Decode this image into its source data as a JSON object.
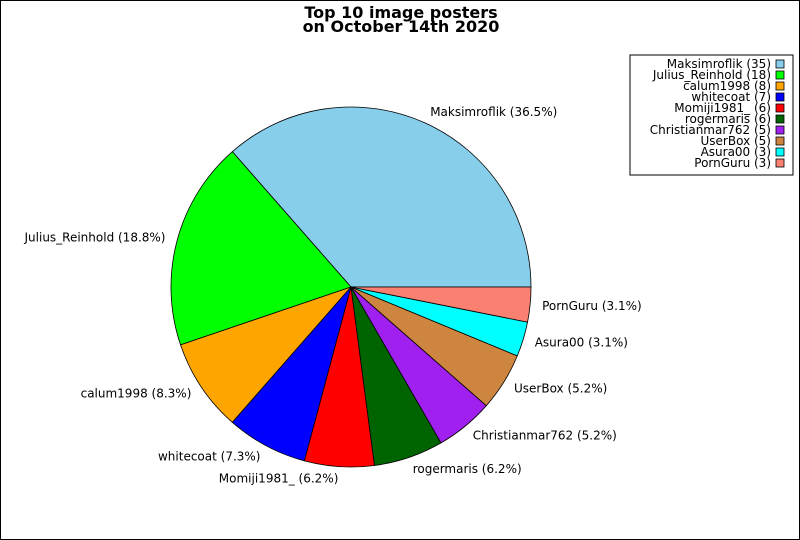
{
  "chart_data": {
    "type": "pie",
    "title_lines": [
      "Top 10 image posters",
      "on October 14th 2020"
    ],
    "slices": [
      {
        "name": "Maksimroflik",
        "value": 35,
        "percent_label": "Maksimroflik (36.5%)",
        "legend_label": "Maksimroflik (35)",
        "color": "#87CEEB"
      },
      {
        "name": "Julius_Reinhold",
        "value": 18,
        "percent_label": "Julius_Reinhold (18.8%)",
        "legend_label": "Julius_Reinhold (18)",
        "color": "#00FF00"
      },
      {
        "name": "calum1998",
        "value": 8,
        "percent_label": "calum1998 (8.3%)",
        "legend_label": "calum1998 (8)",
        "color": "#FFA500"
      },
      {
        "name": "whitecoat",
        "value": 7,
        "percent_label": "whitecoat (7.3%)",
        "legend_label": "whitecoat (7)",
        "color": "#0000FF"
      },
      {
        "name": "Momiji1981_",
        "value": 6,
        "percent_label": "Momiji1981_ (6.2%)",
        "legend_label": "Momiji1981_ (6)",
        "color": "#FF0000"
      },
      {
        "name": "rogermaris",
        "value": 6,
        "percent_label": "rogermaris (6.2%)",
        "legend_label": "rogermaris (6)",
        "color": "#006400"
      },
      {
        "name": "Christianmar762",
        "value": 5,
        "percent_label": "Christianmar762 (5.2%)",
        "legend_label": "Christianmar762 (5)",
        "color": "#A020F0"
      },
      {
        "name": "UserBox",
        "value": 5,
        "percent_label": "UserBox (5.2%)",
        "legend_label": "UserBox (5)",
        "color": "#CD853F"
      },
      {
        "name": "Asura00",
        "value": 3,
        "percent_label": "Asura00 (3.1%)",
        "legend_label": "Asura00 (3)",
        "color": "#00FFFF"
      },
      {
        "name": "PornGuru",
        "value": 3,
        "percent_label": "PornGuru (3.1%)",
        "legend_label": "PornGuru (3)",
        "color": "#FA8072"
      }
    ],
    "start_angle": "0 degrees (3 o'clock)",
    "direction": "counterclockwise",
    "legend_position": "top-right"
  }
}
